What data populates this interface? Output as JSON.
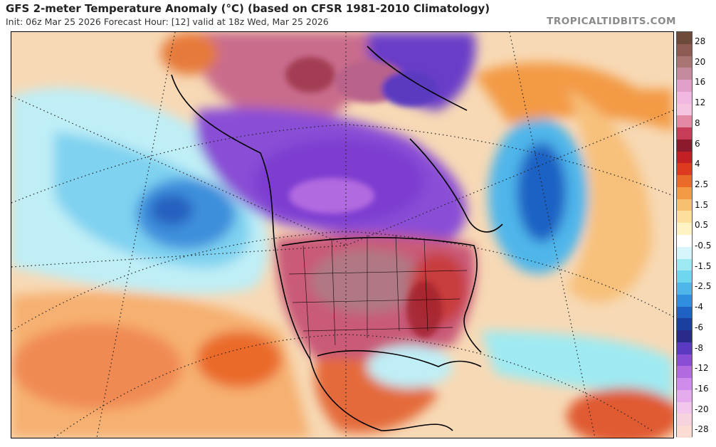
{
  "header": {
    "title": "GFS 2-meter Temperature Anomaly (°C) (based on CFSR 1981-2010 Climatology)",
    "subtitle": "Init: 06z Mar 25 2026   Forecast Hour: [12]   valid at 18z Wed, Mar 25 2026",
    "brand": "TROPICALTIDBITS.COM"
  },
  "colorbar": {
    "labels": [
      "28",
      "20",
      "16",
      "12",
      "8",
      "6",
      "4",
      "2.5",
      "1.5",
      "0.5",
      "-0.5",
      "-1.5",
      "-2.5",
      "-4",
      "-6",
      "-8",
      "-12",
      "-16",
      "-20",
      "-28"
    ],
    "colors": [
      "#6e4a3a",
      "#8d5b52",
      "#a87474",
      "#c48b9e",
      "#e0a0c8",
      "#f0b8e0",
      "#f5c4e0",
      "#e28aa4",
      "#c83c5a",
      "#8b1a2e",
      "#c21f25",
      "#dd3a20",
      "#ea6a2a",
      "#f39a45",
      "#f7c070",
      "#fbdf9a",
      "#fff3c4",
      "#ffffff",
      "#d6f6fb",
      "#9feaf2",
      "#6fd6ef",
      "#4fb6ea",
      "#2f8edf",
      "#1f62c4",
      "#1a3f9e",
      "#2a2a8a",
      "#5a3ac0",
      "#8a4ed6",
      "#b26ae0",
      "#d08cea",
      "#e6abef",
      "#f3c6ee",
      "#f6d3df",
      "#fadcd4"
    ]
  },
  "legend_colors": {
    "warm": "#c0506a",
    "cold": "#8a40d8",
    "ocean_cool": "#5ab6e8"
  }
}
